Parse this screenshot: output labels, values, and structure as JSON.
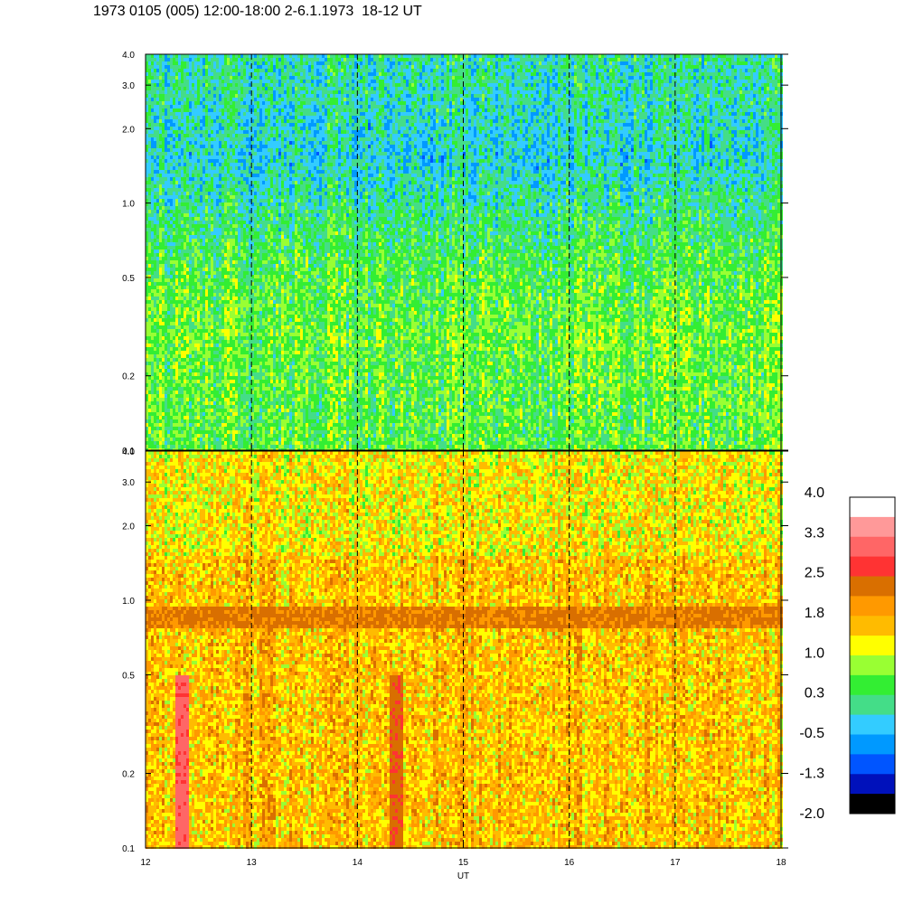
{
  "title": "1973 0105 (005) 12:00-18:00 2-6.1.1973  18-12 UT",
  "chart_data": [
    {
      "type": "heatmap",
      "panel": "top",
      "x_range": [
        12,
        18
      ],
      "y_range": [
        0.1,
        4.0
      ],
      "y_scale": "log",
      "x_ticks": [
        12,
        13,
        14,
        15,
        16,
        17,
        18
      ],
      "y_tick_labels": [
        "0.1",
        "0.2",
        "0.5",
        "1.0",
        "2.0",
        "3.0",
        "4.0"
      ],
      "dashed_hour_lines": [
        13,
        14,
        15,
        16,
        17
      ],
      "dominant_levels": "0.3 to 1.0 (green / yellow-green), dipping to -0.5 / -1.3 (blue) above 1.0",
      "sample_profile": [
        {
          "y": 0.15,
          "value": 0.5
        },
        {
          "y": 0.3,
          "value": 0.6
        },
        {
          "y": 0.6,
          "value": 0.4
        },
        {
          "y": 1.5,
          "value": -0.2
        },
        {
          "y": 3.0,
          "value": 0.0
        }
      ]
    },
    {
      "type": "heatmap",
      "panel": "bottom",
      "x_range": [
        12,
        18
      ],
      "y_range": [
        0.1,
        4.0
      ],
      "y_scale": "log",
      "x_ticks": [
        12,
        13,
        14,
        15,
        16,
        17,
        18
      ],
      "x_tick_labels": [
        "12",
        "13",
        "14",
        "15",
        "16",
        "17",
        "18"
      ],
      "xlabel": "UT",
      "y_tick_labels": [
        "0.1",
        "0.2",
        "0.5",
        "1.0",
        "2.0",
        "3.0",
        "4.0"
      ],
      "dashed_hour_lines": [
        13,
        14,
        15,
        16,
        17
      ],
      "band": {
        "y_center": 0.85,
        "value": 2.2
      },
      "dominant_levels": "1.0 to 2.2 (yellow / orange), band near 0.85 at 2.2",
      "hot_columns": [
        {
          "x": 12.33,
          "value": 3.0
        },
        {
          "x": 14.35,
          "value": 2.4
        }
      ]
    }
  ],
  "colorbar": {
    "labels": [
      "4.0",
      "3.3",
      "2.5",
      "1.8",
      "1.0",
      "0.3",
      "-0.5",
      "-1.3",
      "-2.0"
    ],
    "colors": [
      "#ffffff",
      "#ff9999",
      "#ff6666",
      "#ff3333",
      "#d96f00",
      "#ff9900",
      "#ffbb00",
      "#ffff00",
      "#99ff33",
      "#33ee33",
      "#44dd88",
      "#33ccff",
      "#0099ff",
      "#0055ff",
      "#0011bb",
      "#000000"
    ],
    "range": [
      -2.0,
      4.0
    ]
  }
}
